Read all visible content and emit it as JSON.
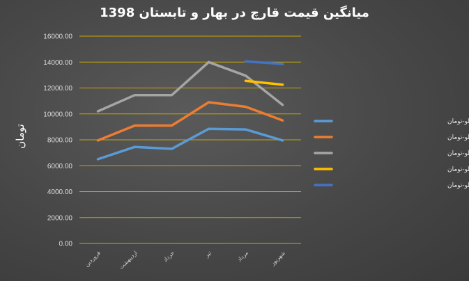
{
  "chart_data": {
    "type": "line",
    "title": "میانگین قیمت قارچ در بهار و تابستان 1398",
    "ylabel": "تومان",
    "xlabel": "",
    "categories": [
      "فروردین",
      "اردیبهشت",
      "خرداد",
      "تیر",
      "مرداد",
      "شهریور"
    ],
    "ylim": [
      0,
      16000
    ],
    "ytick_step": 2000,
    "ytick_labels": [
      "0.00",
      "2000.00",
      "4000.00",
      "6000.00",
      "8000.00",
      "10000.00",
      "12000.00",
      "14000.00",
      "16000.00"
    ],
    "grid": true,
    "legend_position": "right",
    "series": [
      {
        "name": "متوسط قارچ فله درجه سه هر کیلو-تومان",
        "color": "#5b9bd5",
        "values": [
          6500,
          7450,
          7300,
          8850,
          8800,
          7950
        ]
      },
      {
        "name": "متوسط قارچ فله درجه دو هرکیلو-تومان",
        "color": "#ed7d31",
        "values": [
          7950,
          9100,
          9100,
          10900,
          10550,
          9500
        ]
      },
      {
        "name": "متوسط قارچ فله در کیسه هرکیلو-تومان",
        "color": "#a5a5a5",
        "values": [
          10200,
          11450,
          11450,
          14000,
          12950,
          10700
        ]
      },
      {
        "name": "متوسط قارچ فله سبد درجه یک هر کیلو-تومان",
        "color": "#ffc000",
        "values": [
          null,
          null,
          null,
          null,
          12550,
          12250
        ]
      },
      {
        "name": "متوسط قارچ در سبد لوکس هر کیلو-تومان",
        "color": "#4472c4",
        "values": [
          null,
          null,
          null,
          null,
          14050,
          13850
        ]
      }
    ],
    "gridline_color": "#c9a800"
  }
}
